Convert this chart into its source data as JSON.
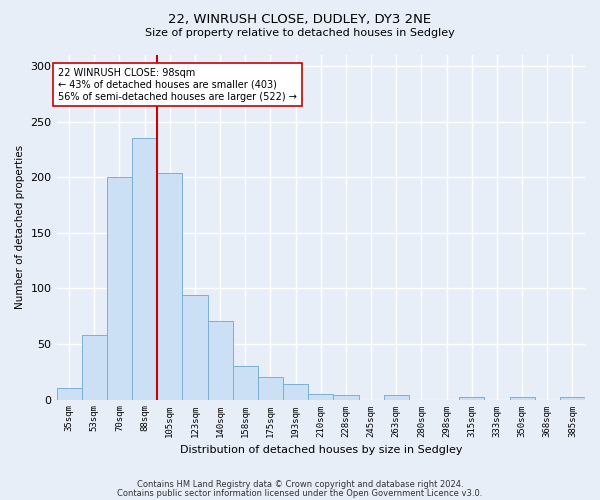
{
  "title1": "22, WINRUSH CLOSE, DUDLEY, DY3 2NE",
  "title2": "Size of property relative to detached houses in Sedgley",
  "xlabel": "Distribution of detached houses by size in Sedgley",
  "ylabel": "Number of detached properties",
  "bar_labels": [
    "35sqm",
    "53sqm",
    "70sqm",
    "88sqm",
    "105sqm",
    "123sqm",
    "140sqm",
    "158sqm",
    "175sqm",
    "193sqm",
    "210sqm",
    "228sqm",
    "245sqm",
    "263sqm",
    "280sqm",
    "298sqm",
    "315sqm",
    "333sqm",
    "350sqm",
    "368sqm",
    "385sqm"
  ],
  "bar_values": [
    10,
    58,
    200,
    235,
    204,
    94,
    71,
    30,
    20,
    14,
    5,
    4,
    0,
    4,
    0,
    0,
    2,
    0,
    2,
    0,
    2
  ],
  "bar_color": "#cce0f5",
  "bar_edgecolor": "#7aafd4",
  "vline_x_index": 3.5,
  "vline_color": "#cc0000",
  "annotation_text": "22 WINRUSH CLOSE: 98sqm\n← 43% of detached houses are smaller (403)\n56% of semi-detached houses are larger (522) →",
  "annotation_box_color": "#ffffff",
  "annotation_box_edgecolor": "#cc0000",
  "background_color": "#e8eef8",
  "grid_color": "#ffffff",
  "footer1": "Contains HM Land Registry data © Crown copyright and database right 2024.",
  "footer2": "Contains public sector information licensed under the Open Government Licence v3.0.",
  "ylim": [
    0,
    310
  ],
  "yticks": [
    0,
    50,
    100,
    150,
    200,
    250,
    300
  ]
}
